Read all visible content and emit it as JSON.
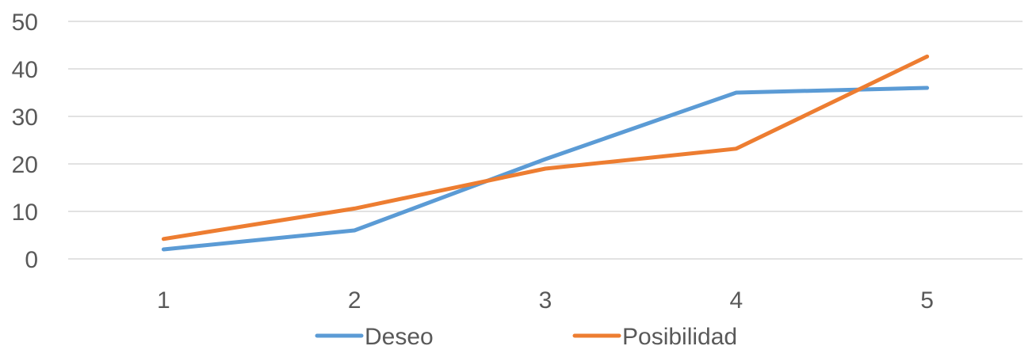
{
  "chart_data": {
    "type": "line",
    "title": "",
    "xlabel": "",
    "ylabel": "",
    "categories": [
      "1",
      "2",
      "3",
      "4",
      "5"
    ],
    "ylim": [
      0,
      50
    ],
    "yticks": [
      "0",
      "10",
      "20",
      "30",
      "40",
      "50"
    ],
    "grid": true,
    "legend_position": "bottom",
    "series": [
      {
        "name": "Deseo",
        "color": "#5B9BD5",
        "values": [
          2,
          6,
          21,
          35,
          36
        ]
      },
      {
        "name": "Posibilidad",
        "color": "#ED7D31",
        "values": [
          4.2,
          10.6,
          19,
          23.2,
          42.6
        ]
      }
    ]
  }
}
